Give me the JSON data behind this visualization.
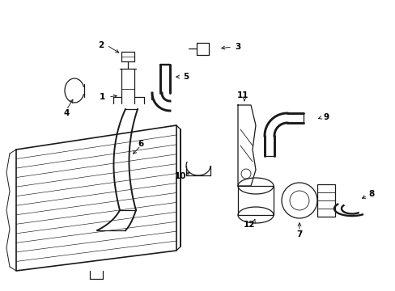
{
  "bg_color": "#ffffff",
  "line_color": "#1a1a1a",
  "figsize": [
    4.89,
    3.6
  ],
  "dpi": 100,
  "label_fs": 7.5
}
